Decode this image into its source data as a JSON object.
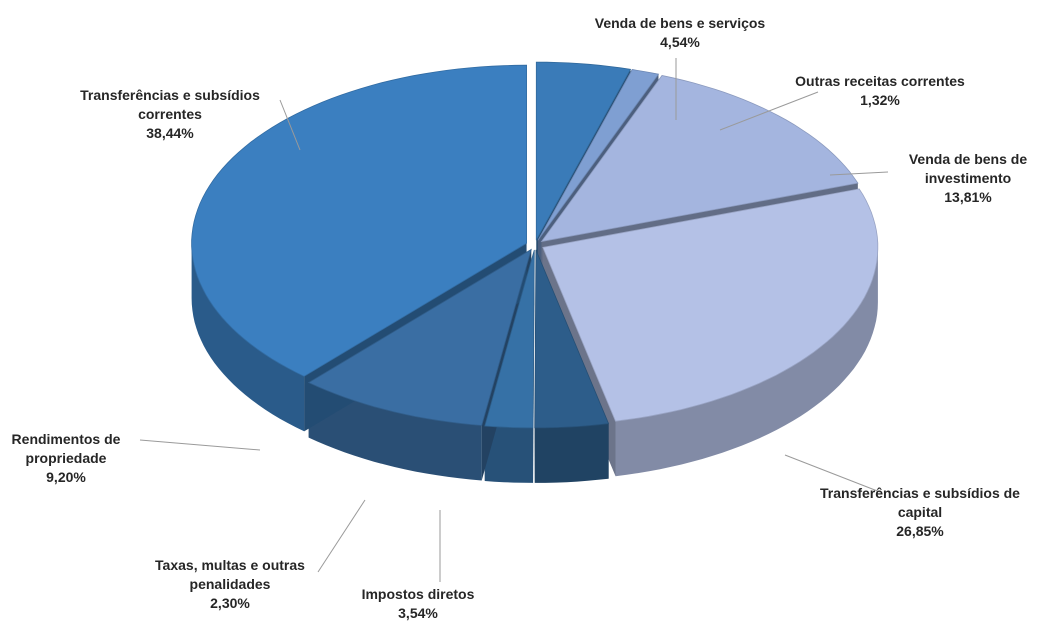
{
  "chart_data": {
    "type": "pie",
    "categories": [
      "Venda de bens e serviços",
      "Outras receitas correntes",
      "Venda de bens de investimento",
      "Transferências e subsídios de capital",
      "Impostos diretos",
      "Taxas, multas e outras penalidades",
      "Rendimentos de propriedade",
      "Transferências e subsídios correntes"
    ],
    "values": [
      4.54,
      1.32,
      13.81,
      26.85,
      3.54,
      2.3,
      9.2,
      38.44
    ],
    "value_labels": [
      "4,54%",
      "1,32%",
      "13,81%",
      "26,85%",
      "3,54%",
      "2,30%",
      "9,20%",
      "38,44%"
    ],
    "colors": [
      "#3a7bb8",
      "#7f9fd2",
      "#a4b5df",
      "#b4c1e6",
      "#2d5d8a",
      "#3671a6",
      "#3a6ea3",
      "#3b7fc0"
    ]
  }
}
